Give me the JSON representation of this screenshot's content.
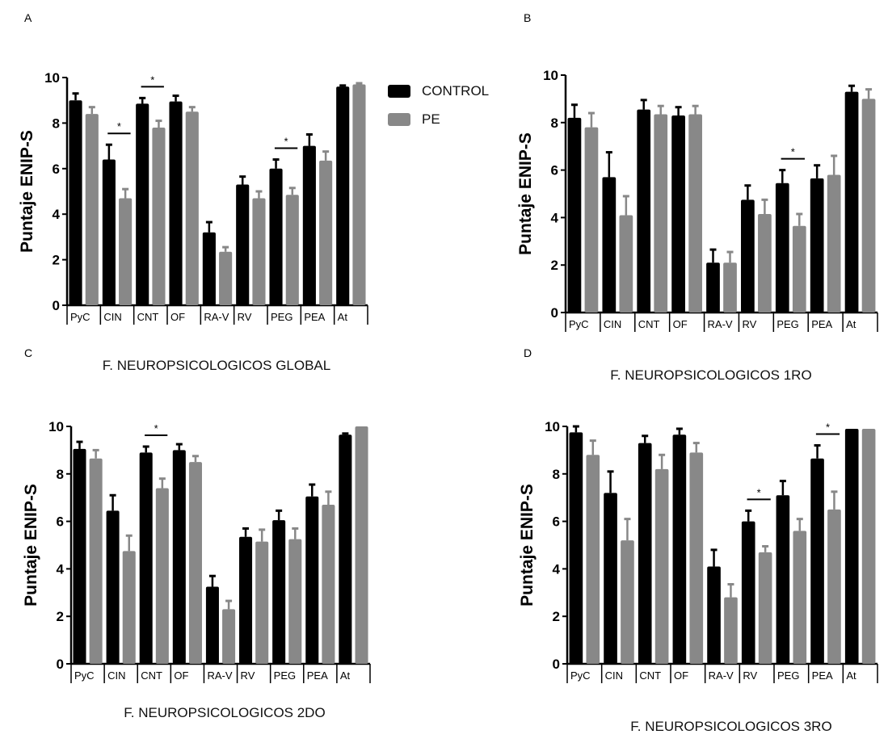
{
  "legend": [
    {
      "label": "CONTROL",
      "color": "#000000"
    },
    {
      "label": "PE",
      "color": "#888888"
    }
  ],
  "chart_data": [
    {
      "panel": "A",
      "type": "bar",
      "title": "F. NEUROPSICOLOGICOS GLOBAL",
      "ylabel": "Puntaje ENIP-S",
      "ylim": [
        0,
        10
      ],
      "yticks": [
        "0",
        "2",
        "4",
        "6",
        "8",
        "10"
      ],
      "categories": [
        "PyC",
        "CIN",
        "CNT",
        "OF",
        "RA-V",
        "RV",
        "PEG",
        "PEA",
        "At"
      ],
      "series": [
        {
          "name": "CONTROL",
          "values": [
            9.0,
            6.4,
            8.85,
            8.95,
            3.2,
            5.3,
            6.0,
            7.0,
            9.6
          ],
          "error": [
            0.3,
            0.65,
            0.25,
            0.25,
            0.45,
            0.35,
            0.4,
            0.5,
            0.05
          ]
        },
        {
          "name": "PE",
          "values": [
            8.4,
            4.7,
            7.8,
            8.5,
            2.35,
            4.7,
            4.85,
            6.35,
            9.7
          ],
          "error": [
            0.3,
            0.4,
            0.3,
            0.2,
            0.2,
            0.3,
            0.3,
            0.4,
            0.05
          ]
        }
      ],
      "significant": [
        "CIN",
        "CNT",
        "PEG"
      ],
      "significance_mark": "*",
      "grid": false
    },
    {
      "panel": "B",
      "type": "bar",
      "title": "F. NEUROPSICOLOGICOS 1RO",
      "ylabel": "Puntaje ENIP-S",
      "ylim": [
        0,
        10
      ],
      "yticks": [
        "0",
        "2",
        "4",
        "6",
        "8",
        "10"
      ],
      "categories": [
        "PyC",
        "CIN",
        "CNT",
        "OF",
        "RA-V",
        "RV",
        "PEG",
        "PEA",
        "At"
      ],
      "series": [
        {
          "name": "CONTROL",
          "values": [
            8.2,
            5.7,
            8.55,
            8.3,
            2.1,
            4.75,
            5.45,
            5.65,
            9.3
          ],
          "error": [
            0.55,
            1.05,
            0.4,
            0.35,
            0.55,
            0.6,
            0.55,
            0.55,
            0.25
          ]
        },
        {
          "name": "PE",
          "values": [
            7.8,
            4.1,
            8.35,
            8.35,
            2.1,
            4.15,
            3.65,
            5.8,
            9.0
          ],
          "error": [
            0.6,
            0.8,
            0.35,
            0.35,
            0.45,
            0.6,
            0.5,
            0.8,
            0.4
          ]
        }
      ],
      "significant": [
        "PEG"
      ],
      "significance_mark": "*",
      "grid": false
    },
    {
      "panel": "C",
      "type": "bar",
      "title": "F. NEUROPSICOLOGICOS 2DO",
      "ylabel": "Puntaje ENIP-S",
      "ylim": [
        0,
        10
      ],
      "yticks": [
        "0",
        "2",
        "4",
        "6",
        "8",
        "10"
      ],
      "categories": [
        "PyC",
        "CIN",
        "CNT",
        "OF",
        "RA-V",
        "RV",
        "PEG",
        "PEA",
        "At"
      ],
      "series": [
        {
          "name": "CONTROL",
          "values": [
            9.05,
            6.45,
            8.9,
            9.0,
            3.25,
            5.35,
            6.05,
            7.05,
            9.65
          ],
          "error": [
            0.3,
            0.65,
            0.25,
            0.25,
            0.45,
            0.35,
            0.4,
            0.5,
            0.05
          ]
        },
        {
          "name": "PE",
          "values": [
            8.65,
            4.75,
            7.4,
            8.5,
            2.3,
            5.15,
            5.25,
            6.7,
            10.0
          ],
          "error": [
            0.35,
            0.65,
            0.4,
            0.25,
            0.35,
            0.5,
            0.45,
            0.55,
            0
          ]
        }
      ],
      "significant": [
        "CNT"
      ],
      "significance_mark": "*",
      "grid": false
    },
    {
      "panel": "D",
      "type": "bar",
      "title": "F. NEUROPSICOLOGICOS 3RO",
      "ylabel": "Puntaje ENIP-S",
      "ylim": [
        0,
        10
      ],
      "yticks": [
        "0",
        "2",
        "4",
        "6",
        "8",
        "10"
      ],
      "categories": [
        "PyC",
        "CIN",
        "CNT",
        "OF",
        "RA-V",
        "RV",
        "PEG",
        "PEA",
        "At"
      ],
      "series": [
        {
          "name": "CONTROL",
          "values": [
            9.75,
            7.2,
            9.3,
            9.65,
            4.1,
            6.0,
            7.1,
            8.65,
            9.9
          ],
          "error": [
            0.25,
            0.9,
            0.3,
            0.25,
            0.7,
            0.45,
            0.6,
            0.55,
            0.02
          ]
        },
        {
          "name": "PE",
          "values": [
            8.8,
            5.2,
            8.2,
            8.9,
            2.8,
            4.7,
            5.6,
            6.5,
            9.9
          ],
          "error": [
            0.6,
            0.9,
            0.6,
            0.4,
            0.55,
            0.25,
            0.5,
            0.75,
            0.02
          ]
        }
      ],
      "significant": [
        "RV",
        "PEA"
      ],
      "significance_mark": "*",
      "grid": false
    }
  ]
}
